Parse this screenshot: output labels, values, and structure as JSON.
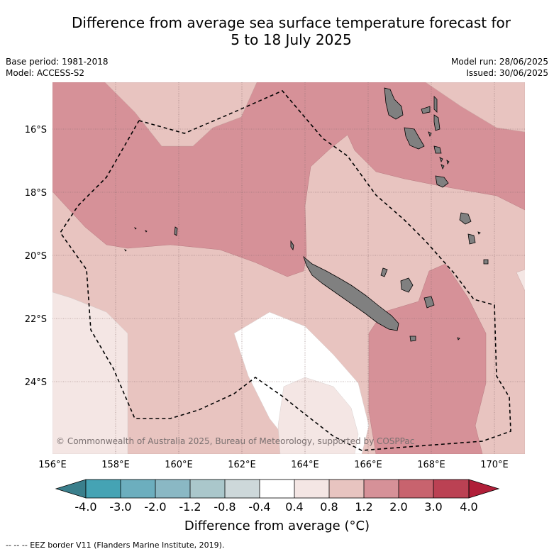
{
  "header": {
    "title_line1": "Difference from average sea surface temperature forecast for",
    "title_line2": "5 to 18 July 2025",
    "base_period": "Base period: 1981-2018",
    "model": "Model: ACCESS-S2",
    "model_run": "Model run: 28/06/2025",
    "issued": "Issued: 30/06/2025"
  },
  "map": {
    "copyright": "© Commonwealth of Australia 2025, Bureau of Meteorology, supported by COSPPac",
    "lat_labels": [
      "16°S",
      "18°S",
      "20°S",
      "22°S",
      "24°S"
    ],
    "lon_labels": [
      "156°E",
      "158°E",
      "160°E",
      "162°E",
      "164°E",
      "166°E",
      "168°E",
      "170°E"
    ],
    "colors": {
      "anom_0_4_0_8": "#f4e6e4",
      "anom_0_8_1_2": "#e8c4c0",
      "anom_1_2_2_0": "#d69198",
      "land": "#808080",
      "neutral": "#ffffff"
    }
  },
  "colorbar": {
    "label": "Difference from average (°C)",
    "ticks": [
      "-4.0",
      "-3.0",
      "-2.0",
      "-1.2",
      "-0.8",
      "-0.4",
      "0.4",
      "0.8",
      "1.2",
      "2.0",
      "3.0",
      "4.0"
    ],
    "low_extend_color": "#3a7f8c",
    "high_extend_color": "#b01e38",
    "colors": [
      "#45a3b4",
      "#6caebe",
      "#8ab8c4",
      "#aac7cb",
      "#cdd8da",
      "#ffffff",
      "#f4e6e4",
      "#e8c4c0",
      "#d69198",
      "#c8636e",
      "#bb4153"
    ]
  },
  "footer": {
    "legend": "--  --  -- EEZ border V11 (Flanders Marine Institute, 2019)."
  }
}
